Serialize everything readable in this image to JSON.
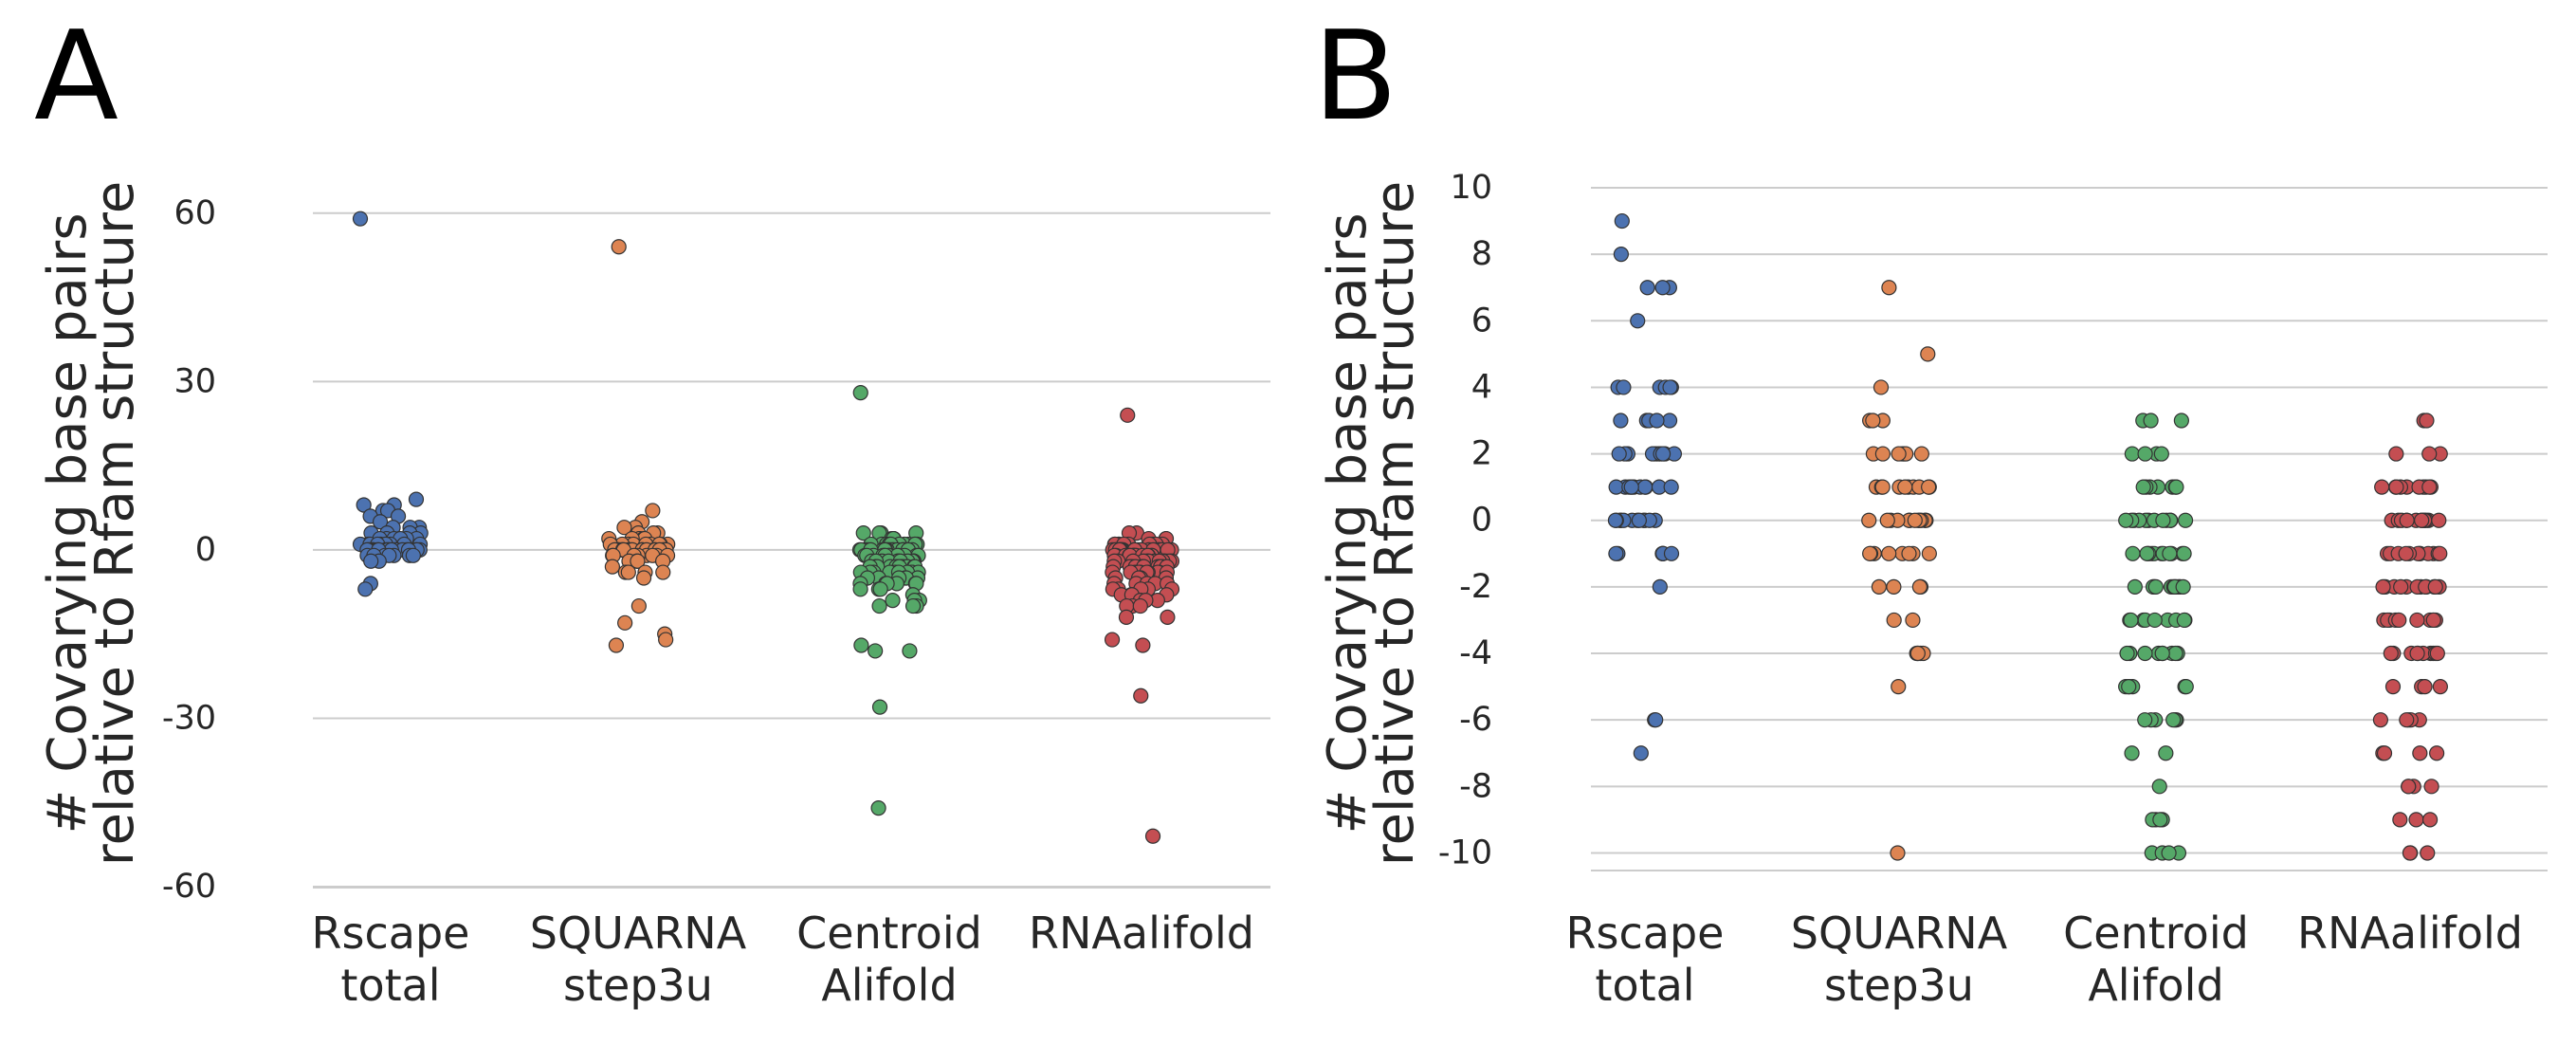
{
  "colors": {
    "Rscape total": "#4c72b0",
    "SQUARNA step3u": "#dd8452",
    "Centroid Alifold": "#55a868",
    "RNAalifold": "#c44e52"
  },
  "chart_data": [
    {
      "panel": "A",
      "type": "scatter",
      "subtype": "stripplot",
      "ylabel": [
        "# Covarying base pairs",
        "relative to Rfam structure"
      ],
      "categories": [
        [
          "Rscape",
          "total"
        ],
        [
          "SQUARNA",
          "step3u"
        ],
        [
          "Centroid",
          "Alifold"
        ],
        [
          "RNAalifold"
        ]
      ],
      "yticks": [
        60,
        30,
        0,
        -30,
        -60
      ],
      "ylim": [
        -60,
        63
      ],
      "grid": true,
      "series": [
        {
          "category": 0,
          "values": [
            59,
            9,
            8,
            8,
            7,
            7,
            6,
            6,
            5,
            4,
            4,
            4,
            3,
            3,
            3,
            3,
            2,
            2,
            2,
            2,
            2,
            2,
            2,
            1,
            1,
            1,
            1,
            1,
            1,
            1,
            1,
            1,
            1,
            0,
            0,
            0,
            0,
            0,
            0,
            0,
            0,
            0,
            0,
            0,
            0,
            0,
            0,
            0,
            0,
            0,
            0,
            -1,
            -1,
            -1,
            -1,
            -1,
            -1,
            -1,
            -2,
            -2,
            -6,
            -7
          ]
        },
        {
          "category": 1,
          "values": [
            54,
            7,
            5,
            4,
            4,
            3,
            3,
            3,
            2,
            2,
            2,
            2,
            2,
            2,
            1,
            1,
            1,
            1,
            1,
            1,
            1,
            1,
            1,
            1,
            0,
            0,
            0,
            0,
            0,
            0,
            0,
            0,
            0,
            0,
            0,
            0,
            0,
            0,
            0,
            0,
            0,
            0,
            -1,
            -1,
            -1,
            -1,
            -1,
            -1,
            -1,
            -1,
            -2,
            -2,
            -2,
            -2,
            -3,
            -4,
            -4,
            -4,
            -4,
            -5,
            -10,
            -13,
            -15,
            -16,
            -17
          ]
        },
        {
          "category": 2,
          "values": [
            28,
            3,
            3,
            3,
            3,
            2,
            2,
            2,
            2,
            2,
            1,
            1,
            1,
            1,
            1,
            1,
            1,
            1,
            1,
            1,
            1,
            0,
            0,
            0,
            0,
            0,
            0,
            0,
            0,
            0,
            0,
            0,
            0,
            0,
            0,
            0,
            0,
            0,
            0,
            0,
            0,
            -1,
            -1,
            -1,
            -1,
            -1,
            -1,
            -1,
            -1,
            -1,
            -1,
            -1,
            -1,
            -1,
            -2,
            -2,
            -2,
            -2,
            -2,
            -2,
            -2,
            -2,
            -2,
            -2,
            -2,
            -2,
            -3,
            -3,
            -3,
            -3,
            -3,
            -3,
            -3,
            -3,
            -3,
            -3,
            -3,
            -3,
            -4,
            -4,
            -4,
            -4,
            -4,
            -4,
            -4,
            -4,
            -4,
            -4,
            -5,
            -5,
            -5,
            -5,
            -5,
            -5,
            -6,
            -6,
            -6,
            -6,
            -6,
            -6,
            -7,
            -7,
            -7,
            -8,
            -9,
            -9,
            -9,
            -10,
            -10,
            -10,
            -17,
            -18,
            -18,
            -28,
            -46
          ]
        },
        {
          "category": 3,
          "values": [
            24,
            3,
            3,
            2,
            2,
            2,
            1,
            1,
            1,
            1,
            1,
            1,
            1,
            1,
            1,
            1,
            0,
            0,
            0,
            0,
            0,
            0,
            0,
            0,
            0,
            0,
            0,
            0,
            0,
            0,
            0,
            0,
            0,
            0,
            0,
            0,
            0,
            0,
            -1,
            -1,
            -1,
            -1,
            -1,
            -1,
            -1,
            -1,
            -1,
            -1,
            -1,
            -1,
            -1,
            -1,
            -1,
            -2,
            -2,
            -2,
            -2,
            -2,
            -2,
            -2,
            -2,
            -2,
            -2,
            -2,
            -2,
            -2,
            -3,
            -3,
            -3,
            -3,
            -3,
            -3,
            -3,
            -3,
            -3,
            -3,
            -3,
            -4,
            -4,
            -4,
            -4,
            -4,
            -4,
            -4,
            -4,
            -4,
            -4,
            -5,
            -5,
            -5,
            -5,
            -6,
            -6,
            -6,
            -6,
            -6,
            -7,
            -7,
            -7,
            -7,
            -7,
            -8,
            -8,
            -8,
            -8,
            -9,
            -9,
            -9,
            -10,
            -10,
            -10,
            -12,
            -12,
            -16,
            -17,
            -26,
            -51
          ]
        }
      ]
    },
    {
      "panel": "B",
      "type": "scatter",
      "subtype": "stripplot",
      "ylabel": [
        "# Covarying base pairs",
        "relative to Rfam structure"
      ],
      "categories": [
        [
          "Rscape",
          "total"
        ],
        [
          "SQUARNA",
          "step3u"
        ],
        [
          "Centroid",
          "Alifold"
        ],
        [
          "RNAalifold"
        ]
      ],
      "yticks": [
        10,
        8,
        6,
        4,
        2,
        0,
        -2,
        -4,
        -6,
        -8,
        -10
      ],
      "ylim": [
        -10.5,
        10
      ],
      "grid": true,
      "series": [
        {
          "category": 0,
          "values": [
            9,
            8,
            7,
            7,
            7,
            6,
            4,
            4,
            4,
            4,
            4,
            4,
            3,
            3,
            3,
            3,
            3,
            2,
            2,
            2,
            2,
            2,
            2,
            2,
            2,
            2,
            2,
            1,
            1,
            1,
            1,
            1,
            1,
            1,
            1,
            1,
            1,
            1,
            0,
            0,
            0,
            0,
            0,
            0,
            0,
            0,
            0,
            0,
            0,
            0,
            -1,
            -1,
            -1,
            -1,
            -1,
            -1,
            -1,
            -2,
            -6,
            -6,
            -7
          ]
        },
        {
          "category": 1,
          "values": [
            7,
            5,
            4,
            3,
            3,
            3,
            2,
            2,
            2,
            2,
            2,
            2,
            2,
            1,
            1,
            1,
            1,
            1,
            1,
            1,
            1,
            1,
            1,
            0,
            0,
            0,
            0,
            0,
            0,
            0,
            0,
            0,
            0,
            0,
            0,
            -1,
            -1,
            -1,
            -1,
            -1,
            -1,
            -1,
            -1,
            -2,
            -2,
            -2,
            -2,
            -3,
            -3,
            -4,
            -4,
            -4,
            -4,
            -4,
            -5,
            -10
          ]
        },
        {
          "category": 2,
          "values": [
            3,
            3,
            3,
            2,
            2,
            2,
            2,
            1,
            1,
            1,
            1,
            1,
            1,
            1,
            0,
            0,
            0,
            0,
            0,
            0,
            0,
            0,
            0,
            0,
            0,
            0,
            -1,
            -1,
            -1,
            -1,
            -1,
            -1,
            -1,
            -1,
            -1,
            -1,
            -1,
            -1,
            -2,
            -2,
            -2,
            -2,
            -2,
            -2,
            -2,
            -2,
            -2,
            -2,
            -2,
            -3,
            -3,
            -3,
            -3,
            -3,
            -3,
            -3,
            -3,
            -3,
            -4,
            -4,
            -4,
            -4,
            -4,
            -4,
            -4,
            -4,
            -4,
            -5,
            -5,
            -5,
            -5,
            -5,
            -5,
            -6,
            -6,
            -6,
            -6,
            -6,
            -6,
            -7,
            -7,
            -8,
            -9,
            -9,
            -9,
            -9,
            -10,
            -10,
            -10,
            -10
          ]
        },
        {
          "category": 3,
          "values": [
            3,
            3,
            2,
            2,
            2,
            1,
            1,
            1,
            1,
            1,
            1,
            1,
            1,
            1,
            1,
            0,
            0,
            0,
            0,
            0,
            0,
            0,
            0,
            0,
            0,
            0,
            0,
            0,
            -1,
            -1,
            -1,
            -1,
            -1,
            -1,
            -1,
            -1,
            -1,
            -1,
            -1,
            -1,
            -2,
            -2,
            -2,
            -2,
            -2,
            -2,
            -2,
            -2,
            -2,
            -2,
            -2,
            -2,
            -3,
            -3,
            -3,
            -3,
            -3,
            -3,
            -3,
            -3,
            -3,
            -3,
            -3,
            -4,
            -4,
            -4,
            -4,
            -4,
            -4,
            -4,
            -4,
            -4,
            -4,
            -5,
            -5,
            -5,
            -5,
            -6,
            -6,
            -6,
            -6,
            -6,
            -7,
            -7,
            -7,
            -7,
            -8,
            -8,
            -8,
            -8,
            -9,
            -9,
            -9,
            -10,
            -10,
            -10
          ]
        }
      ]
    }
  ]
}
